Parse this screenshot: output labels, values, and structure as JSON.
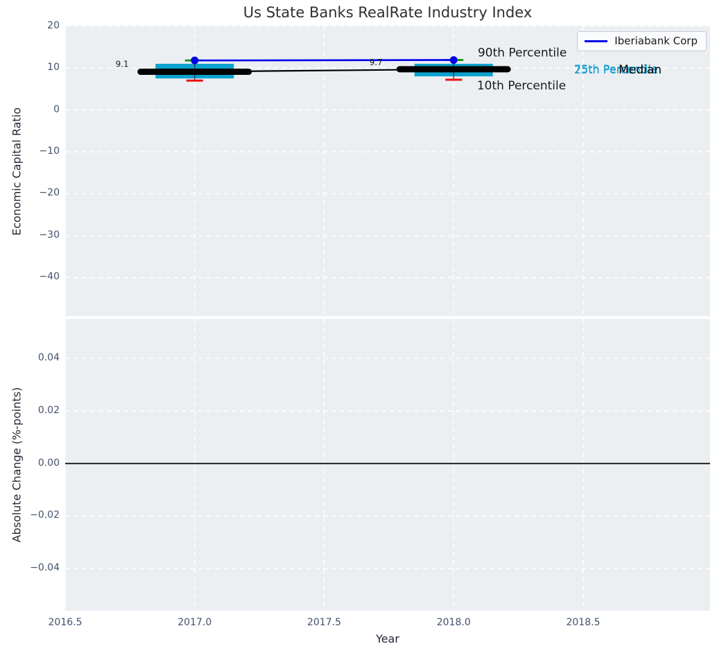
{
  "title": "Us State Banks RealRate Industry Index",
  "legend": {
    "label": "Iberiabank Corp"
  },
  "colors": {
    "axes_bg": "#ebeff2",
    "grid": "#ffffff",
    "box_fill": "#0ba3cd",
    "median": "#000000",
    "company": "#0000e8",
    "p90_cap": "#008c00",
    "p10_cap": "#ea1010",
    "tick_text": "#42526b",
    "annotation_dark": "#1a1a1a",
    "annotation_cyan": "#1d9ed3",
    "zero_line": "#000000"
  },
  "chart_data": [
    {
      "type": "boxplot-timeseries",
      "title": "Us State Banks RealRate Industry Index",
      "xlabel": "Year",
      "ylabel": "Economic Capital Ratio",
      "xlim": [
        2016.5,
        2018.99
      ],
      "ylim": [
        -49.2,
        20.1
      ],
      "xticks": [
        2016.5,
        2017.0,
        2017.5,
        2018.0,
        2018.5
      ],
      "xtick_labels": [
        "2016.5",
        "2017.0",
        "2017.5",
        "2018.0",
        "2018.5"
      ],
      "yticks": [
        20,
        10,
        0,
        -10,
        -20,
        -30,
        -40
      ],
      "ytick_labels": [
        "20",
        "10",
        "0",
        "−10",
        "−20",
        "−30",
        "−40"
      ],
      "grid": "dashed-white",
      "legend_position": "upper right",
      "boxes": [
        {
          "year": 2017,
          "p90": 11.8,
          "p75": 11.0,
          "median": 9.1,
          "p25": 7.5,
          "p10": 7.0,
          "median_label": "9.1"
        },
        {
          "year": 2018,
          "p90": 11.9,
          "p75": 11.0,
          "median": 9.7,
          "p25": 8.0,
          "p10": 7.2,
          "median_label": "9.7"
        }
      ],
      "series": [
        {
          "name": "Iberiabank Corp",
          "x": [
            2017,
            2018
          ],
          "y": [
            11.8,
            11.9
          ],
          "marker": "dot"
        }
      ],
      "annotations": [
        {
          "name": "annotation-value-2017",
          "text": "9.1",
          "x": 2016.72,
          "y": 10.8,
          "color": "#1a1a1a",
          "size": 12,
          "anchor": "middle"
        },
        {
          "name": "annotation-value-2018",
          "text": "9.7",
          "x": 2017.7,
          "y": 11.25,
          "color": "#1a1a1a",
          "size": 12,
          "anchor": "middle"
        },
        {
          "name": "annotation-90th-percentile",
          "text": "90th Percentile",
          "x": 2018.093,
          "y": 13.6,
          "color": "#1a1a1a",
          "size": 17,
          "anchor": "start"
        },
        {
          "name": "annotation-10th-percentile",
          "text": "10th Percentile",
          "x": 2018.09,
          "y": 5.7,
          "color": "#1a1a1a",
          "size": 17,
          "anchor": "start"
        },
        {
          "name": "annotation-75th-percentile",
          "text": "75th Percentile",
          "x": 2018.465,
          "y": 9.57,
          "color": "#1d9ed3",
          "size": 16,
          "anchor": "start"
        },
        {
          "name": "annotation-25th-percentile",
          "text": "25th Percentile",
          "x": 2018.465,
          "y": 9.42,
          "color": "#1d9ed3",
          "size": 16,
          "anchor": "start"
        },
        {
          "name": "annotation-median",
          "text": "Median",
          "x": 2018.637,
          "y": 9.5,
          "color": "#000000",
          "size": 17,
          "anchor": "start"
        }
      ]
    },
    {
      "type": "line",
      "xlabel": "Year",
      "ylabel": "Absolute Change (%-points)",
      "xlim": [
        2016.5,
        2018.99
      ],
      "ylim": [
        -0.056,
        0.055
      ],
      "xticks": [
        2016.5,
        2017.0,
        2017.5,
        2018.0,
        2018.5
      ],
      "yticks": [
        0.04,
        0.02,
        0.0,
        -0.02,
        -0.04
      ],
      "ytick_labels": [
        "0.04",
        "0.02",
        "0.00",
        "−0.02",
        "−0.04"
      ],
      "grid": "dashed-white",
      "zero_line": 0.0,
      "series": []
    }
  ]
}
